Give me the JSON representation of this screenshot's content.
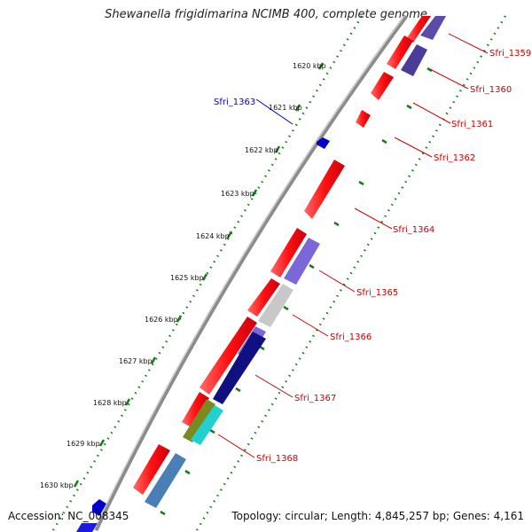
{
  "title": "Shewanella frigidimarina NCIMB 400, complete genome",
  "footer": {
    "accession": "Accession: NC_008345",
    "topology": "Topology: circular; Length: 4,845,257 bp; Genes: 4,161"
  },
  "scale_labels": [
    "1620 kbp",
    "1621 kbp",
    "1622 kbp",
    "1623 kbp",
    "1624 kbp",
    "1625 kbp",
    "1626 kbp",
    "1627 kbp",
    "1628 kbp",
    "1629 kbp",
    "1630 kbp"
  ],
  "genes": [
    {
      "label": "Sfri_1359",
      "strand": "forward",
      "color": "#e8001a"
    },
    {
      "label": "Sfri_1360",
      "strand": "forward",
      "color": "#e8001a"
    },
    {
      "label": "Sfri_1361",
      "strand": "forward",
      "color": "#e8001a"
    },
    {
      "label": "Sfri_1362",
      "strand": "forward",
      "color": "#e8001a"
    },
    {
      "label": "Sfri_1363",
      "strand": "reverse",
      "color": "#0000cc"
    },
    {
      "label": "Sfri_1364",
      "strand": "forward",
      "color": "#e8001a"
    },
    {
      "label": "Sfri_1365",
      "strand": "forward",
      "color": "#e8001a"
    },
    {
      "label": "Sfri_1366",
      "strand": "forward",
      "color": "#e8001a"
    },
    {
      "label": "Sfri_1367",
      "strand": "forward",
      "color": "#e8001a"
    },
    {
      "label": "Sfri_1368",
      "strand": "forward",
      "color": "#e8001a"
    }
  ],
  "colors": {
    "forward_gene": "#e8001a",
    "reverse_gene": "#0000cc",
    "backbone": "#8c8c8c",
    "tick": "#1a7a1a",
    "label_red": "#cc0000",
    "label_blue": "#0000cc"
  }
}
